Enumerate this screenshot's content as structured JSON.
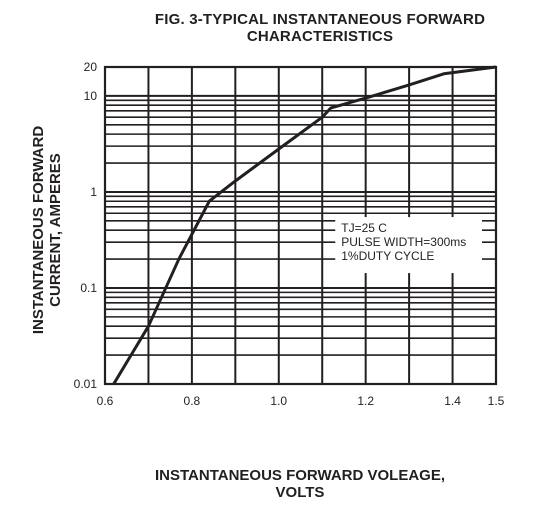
{
  "chart_data": {
    "type": "line",
    "title_line1": "FIG. 3-TYPICAL INSTANTANEOUS FORWARD",
    "title_line2": "CHARACTERISTICS",
    "xlabel_line1": "INSTANTANEOUS FORWARD VOLEAGE,",
    "xlabel_line2": "VOLTS",
    "ylabel_line1": "INSTANTANEOUS FORWARD",
    "ylabel_line2": "CURRENT, AMPERES",
    "x_scale": "linear",
    "y_scale": "log",
    "xlim": [
      0.6,
      1.5
    ],
    "ylim": [
      0.01,
      20
    ],
    "grid": true,
    "x_ticks": [
      {
        "value": 0.6,
        "label": "0.6"
      },
      {
        "value": 0.8,
        "label": "0.8"
      },
      {
        "value": 1.0,
        "label": "1.0"
      },
      {
        "value": 1.2,
        "label": "1.2"
      },
      {
        "value": 1.4,
        "label": "1.4"
      },
      {
        "value": 1.5,
        "label": "1.5"
      }
    ],
    "y_ticks": [
      {
        "value": 0.01,
        "label": "0.01"
      },
      {
        "value": 0.1,
        "label": "0.1"
      },
      {
        "value": 1,
        "label": "1"
      },
      {
        "value": 10,
        "label": "10"
      },
      {
        "value": 20,
        "label": "20"
      }
    ],
    "x_grid": [
      0.6,
      0.7,
      0.8,
      0.9,
      1.0,
      1.1,
      1.2,
      1.3,
      1.4,
      1.5
    ],
    "y_grid": [
      0.01,
      0.02,
      0.03,
      0.04,
      0.05,
      0.06,
      0.07,
      0.08,
      0.09,
      0.1,
      0.2,
      0.3,
      0.4,
      0.5,
      0.6,
      0.7,
      0.8,
      0.9,
      1,
      2,
      3,
      4,
      5,
      6,
      7,
      8,
      9,
      10,
      20
    ],
    "series": [
      {
        "x": [
          0.62,
          0.7,
          0.77,
          0.84,
          0.9,
          1.0,
          1.1,
          1.12,
          1.2,
          1.3,
          1.38,
          1.5
        ],
        "y": [
          0.01,
          0.04,
          0.2,
          0.8,
          1.3,
          2.8,
          6.0,
          7.5,
          9.5,
          13.0,
          17.0,
          20.0
        ]
      }
    ],
    "annotation": [
      "TJ=25 C",
      "PULSE WIDTH=300ms",
      "1%DUTY CYCLE"
    ],
    "colors": {
      "line": "#231f20",
      "grid": "#231f20",
      "background": "#ffffff"
    }
  }
}
